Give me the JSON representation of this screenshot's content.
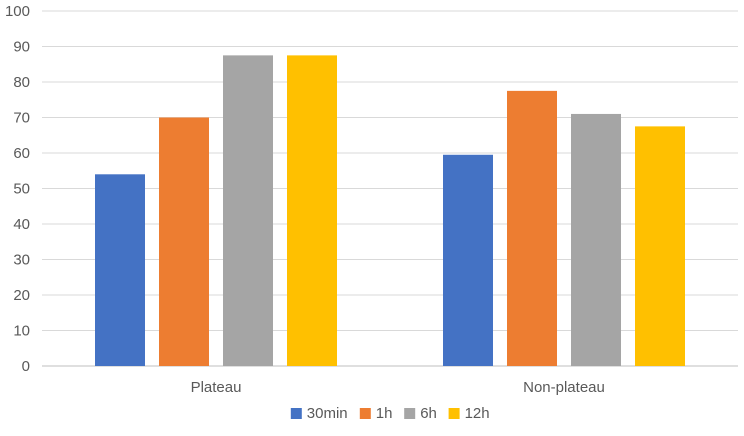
{
  "chart_data": {
    "type": "bar",
    "title": "",
    "xlabel": "",
    "ylabel": "",
    "categories": [
      "Plateau",
      "Non-plateau"
    ],
    "series": [
      {
        "name": "30min",
        "values": [
          54,
          59.5
        ],
        "color": "#4472c4"
      },
      {
        "name": "1h",
        "values": [
          70,
          77.5
        ],
        "color": "#ed7d31"
      },
      {
        "name": "6h",
        "values": [
          87.5,
          71
        ],
        "color": "#a5a5a5"
      },
      {
        "name": "12h",
        "values": [
          87.5,
          67.5
        ],
        "color": "#ffc000"
      }
    ],
    "ylim": [
      0,
      100
    ],
    "yticks": [
      "0",
      "10",
      "20",
      "30",
      "40",
      "50",
      "60",
      "70",
      "80",
      "90",
      "100"
    ],
    "grid": true,
    "legend_position": "bottom"
  }
}
